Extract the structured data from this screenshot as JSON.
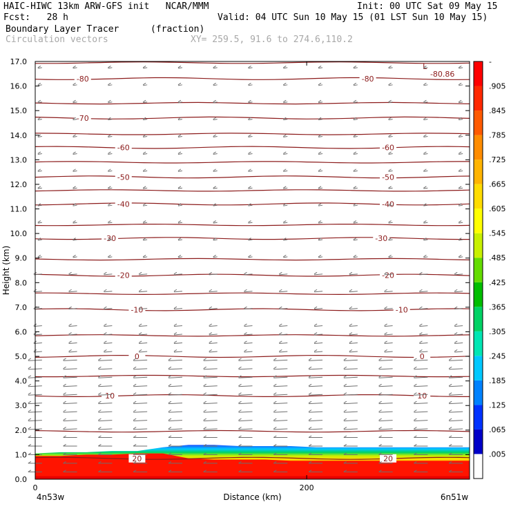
{
  "header": {
    "line1_left": "HAIC-HIWC 13km ARW-GFS init   NCAR/MMM",
    "line1_right": "Init: 00 UTC Sat 09 May 15",
    "line2_left": "Fcst:   28 h",
    "line2_right": "Valid: 04 UTC Sun 10 May 15 (01 LST Sun 10 May 15)",
    "field_name": "Boundary Layer Tracer",
    "field_units": "(fraction)",
    "overlay_name": "Circulation vectors",
    "xy_text": "XY= 259.5, 91.6 to 274.6,110.2"
  },
  "colors": {
    "contour": "#8b1a1a",
    "vector": "#6e6e6e",
    "colorbar": [
      "#ffffff",
      "#0000c8",
      "#0032ff",
      "#0082ff",
      "#00c8ff",
      "#00e6b4",
      "#00d264",
      "#00be00",
      "#64dc00",
      "#c8f000",
      "#ffff00",
      "#ffdc00",
      "#ffb400",
      "#ff8c00",
      "#ff5a00",
      "#ff2800",
      "#ff0000"
    ]
  },
  "chart_data": {
    "type": "cross-section",
    "title": "Boundary Layer Tracer",
    "units": "(fraction)",
    "xlabel": "Distance (km)",
    "ylabel": "Height (km)",
    "xlim": [
      0,
      320
    ],
    "ylim": [
      0,
      17
    ],
    "xticks": [
      {
        "value": 0,
        "label": "0"
      },
      {
        "value": 200,
        "label": "200"
      }
    ],
    "x_end_labels": {
      "left": "4n53w",
      "right": "6n51w"
    },
    "yticks": [
      0,
      1,
      2,
      3,
      4,
      5,
      6,
      7,
      8,
      9,
      10,
      11,
      12,
      13,
      14,
      15,
      16,
      17
    ],
    "ytick_labels": [
      "0.0",
      "1.0",
      "2.0",
      "3.0",
      "4.0",
      "5.0",
      "6.0",
      "7.0",
      "8.0",
      "9.0",
      "10.0",
      "11.0",
      "12.0",
      "13.0",
      "14.0",
      "15.0",
      "16.0",
      "17.0"
    ],
    "colorbar_labels": [
      ".005",
      ".065",
      ".125",
      ".185",
      ".245",
      ".305",
      ".365",
      ".425",
      ".485",
      ".545",
      ".605",
      ".665",
      ".725",
      ".785",
      ".845",
      ".905",
      "-"
    ],
    "temperature_contours": [
      {
        "value": 20,
        "height_km": 0.85
      },
      {
        "value": 10,
        "height_km": 3.4
      },
      {
        "value": 0,
        "height_km": 5.0
      },
      {
        "value": -10,
        "height_km": 6.9
      },
      {
        "value": -20,
        "height_km": 8.3
      },
      {
        "value": -30,
        "height_km": 9.8
      },
      {
        "value": -40,
        "height_km": 11.2
      },
      {
        "value": -50,
        "height_km": 12.3
      },
      {
        "value": -60,
        "height_km": 13.5
      },
      {
        "value": -70,
        "height_km": 14.7
      },
      {
        "value": -80,
        "height_km": 16.3
      }
    ],
    "unlabeled_contour_heights_km": [
      1.95,
      4.2,
      5.85,
      7.55,
      8.95,
      10.35,
      11.75,
      12.9,
      14.05,
      15.3,
      16.95
    ],
    "extremum_label": {
      "text": "L",
      "value": "-80.86"
    },
    "tracer_top_km": [
      1.05,
      1.1,
      1.1,
      1.15,
      1.15,
      1.3,
      1.4,
      1.4,
      1.35,
      1.35,
      1.35,
      1.3,
      1.3,
      1.3,
      1.3,
      1.3,
      1.3,
      1.3
    ],
    "tracer_full_top_km": [
      0.95,
      0.95,
      1.0,
      1.0,
      1.05,
      1.05,
      0.85,
      0.8,
      0.8,
      0.8,
      0.75,
      0.75,
      0.75,
      0.75,
      0.75,
      0.75,
      0.75,
      0.75
    ]
  }
}
